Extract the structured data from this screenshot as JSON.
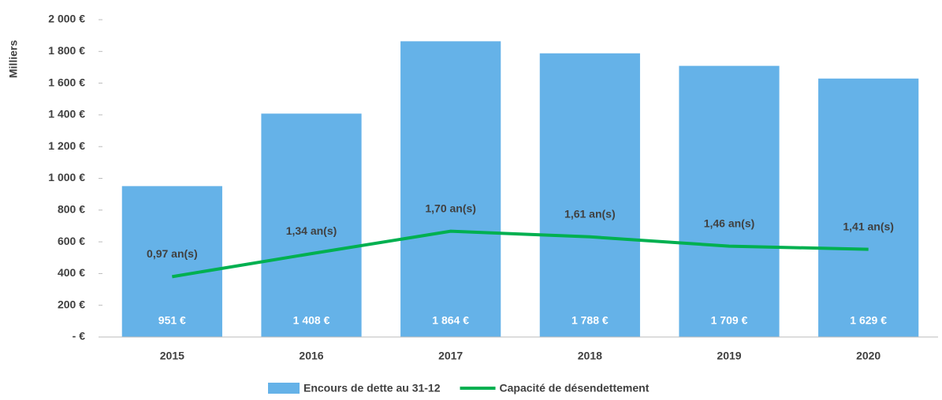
{
  "chart_data": {
    "type": "bar",
    "y_label": "Milliers",
    "categories": [
      "2015",
      "2016",
      "2017",
      "2018",
      "2019",
      "2020"
    ],
    "series": [
      {
        "name": "Encours de dette au 31-12",
        "color": "#65b2e8",
        "type": "bar",
        "values": [
          951,
          1408,
          1864,
          1788,
          1709,
          1629
        ],
        "value_labels": [
          "951 €",
          "1 408 €",
          "1 864 €",
          "1 788 €",
          "1 709 €",
          "1 629 €"
        ]
      },
      {
        "name": "Capacité de désendettement",
        "color": "#00b050",
        "type": "line",
        "axis": "y2",
        "values": [
          0.97,
          1.34,
          1.7,
          1.61,
          1.46,
          1.41
        ],
        "value_labels": [
          "0,97 an(s)",
          "1,34 an(s)",
          "1,70 an(s)",
          "1,61 an(s)",
          "1,46 an(s)",
          "1,41 an(s)"
        ]
      }
    ],
    "ylim": [
      0,
      2000
    ],
    "yticks": [
      {
        "value": 0,
        "label": "-  €"
      },
      {
        "value": 200,
        "label": "200 €"
      },
      {
        "value": 400,
        "label": "400 €"
      },
      {
        "value": 600,
        "label": "600 €"
      },
      {
        "value": 800,
        "label": "800 €"
      },
      {
        "value": 1000,
        "label": "1 000 €"
      },
      {
        "value": 1200,
        "label": "1 200 €"
      },
      {
        "value": 1400,
        "label": "1 400 €"
      },
      {
        "value": 1600,
        "label": "1 600 €"
      },
      {
        "value": 1800,
        "label": "1 800 €"
      },
      {
        "value": 2000,
        "label": "2 000 €"
      }
    ],
    "y2lim": [
      0,
      5.1
    ],
    "legend": "bottom"
  }
}
